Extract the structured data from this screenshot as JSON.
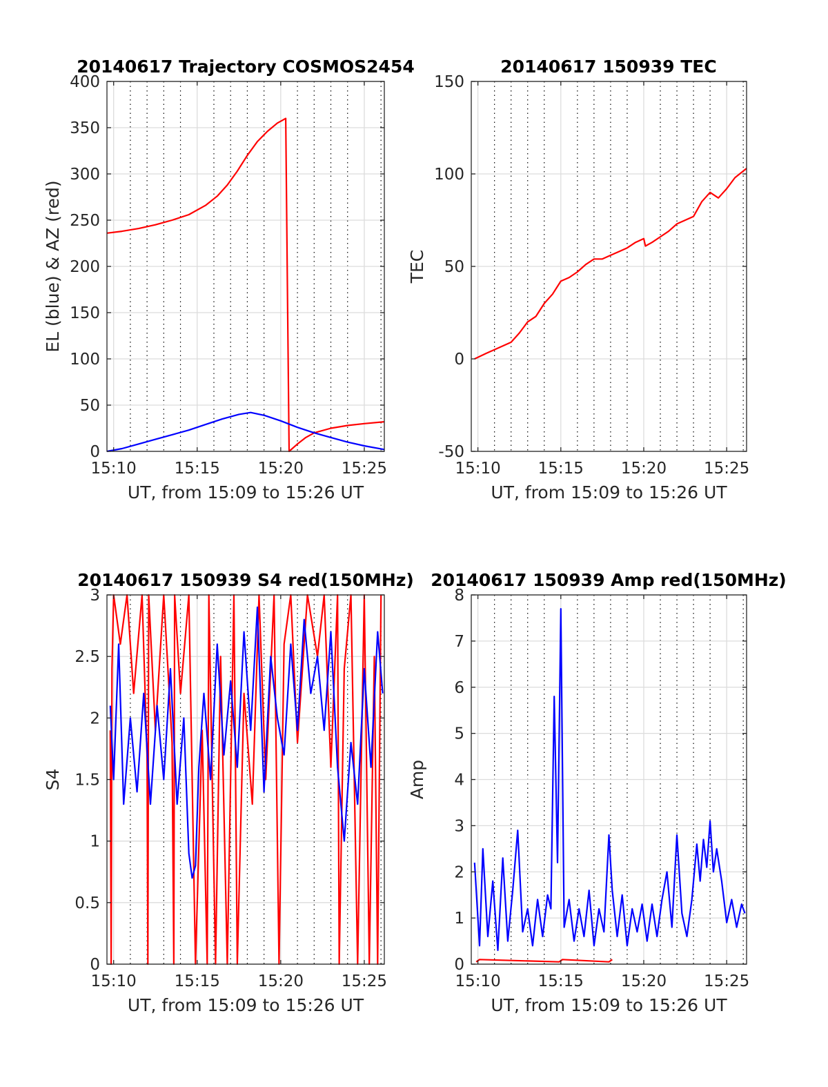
{
  "chart_data": [
    {
      "type": "line",
      "title": "20140617 Trajectory COSMOS2454",
      "xlabel": "UT, from 15:09 to 15:26 UT",
      "ylabel": "EL (blue) & AZ (red)",
      "xlim": [
        9.6,
        26.2
      ],
      "ylim": [
        0,
        400
      ],
      "xticks": [
        10,
        15,
        20,
        25
      ],
      "xtick_labels": [
        "15:10",
        "15:15",
        "15:20",
        "15:25"
      ],
      "yticks": [
        0,
        50,
        100,
        150,
        200,
        250,
        300,
        350,
        400
      ],
      "ytick_labels": [
        "0",
        "50",
        "100",
        "150",
        "200",
        "250",
        "300",
        "350",
        "400"
      ],
      "grid": true,
      "minor_grid_x": true,
      "series": [
        {
          "color": "#ff0000",
          "x": [
            9.6,
            10.5,
            11.5,
            12.5,
            13.5,
            14.5,
            15.5,
            16.2,
            16.8,
            17.4,
            18.0,
            18.6,
            19.2,
            19.8,
            20.1,
            20.3,
            20.4,
            20.5,
            21.0,
            21.5,
            22.0,
            23.0,
            24.0,
            25.0,
            26.2
          ],
          "y": [
            236,
            238,
            241,
            245,
            250,
            256,
            266,
            276,
            288,
            303,
            320,
            335,
            346,
            355,
            358,
            360,
            180,
            0,
            8,
            15,
            20,
            25,
            28,
            30,
            32
          ]
        },
        {
          "color": "#0000ff",
          "x": [
            9.6,
            10.5,
            11.5,
            12.5,
            13.5,
            14.5,
            15.5,
            16.5,
            17.5,
            18.2,
            19.0,
            20.0,
            21.0,
            22.0,
            23.0,
            24.0,
            25.0,
            26.2
          ],
          "y": [
            0,
            3,
            8,
            13,
            18,
            23,
            29,
            35,
            40,
            42,
            39,
            33,
            26,
            20,
            15,
            10,
            6,
            2
          ]
        }
      ]
    },
    {
      "type": "line",
      "title": "20140617 150939 TEC",
      "xlabel": "UT, from 15:09 to 15:26 UT",
      "ylabel": "TEC",
      "xlim": [
        9.6,
        26.2
      ],
      "ylim": [
        -50,
        150
      ],
      "xticks": [
        10,
        15,
        20,
        25
      ],
      "xtick_labels": [
        "15:10",
        "15:15",
        "15:20",
        "15:25"
      ],
      "yticks": [
        -50,
        0,
        50,
        100,
        150
      ],
      "ytick_labels": [
        "-50",
        "0",
        "50",
        "100",
        "150"
      ],
      "grid": true,
      "minor_grid_x": true,
      "series": [
        {
          "color": "#ff0000",
          "x": [
            9.8,
            10.5,
            11.0,
            11.5,
            12.0,
            12.5,
            13.0,
            13.5,
            14.0,
            14.5,
            15.0,
            15.5,
            16.0,
            16.5,
            17.0,
            17.5,
            18.0,
            18.5,
            19.0,
            19.5,
            20.0,
            20.1,
            20.5,
            21.0,
            21.5,
            22.0,
            22.5,
            23.0,
            23.5,
            24.0,
            24.5,
            25.0,
            25.5,
            26.2
          ],
          "y": [
            0,
            3,
            5,
            7,
            9,
            14,
            20,
            23,
            30,
            35,
            42,
            44,
            47,
            51,
            54,
            54,
            56,
            58,
            60,
            63,
            65,
            61,
            63,
            66,
            69,
            73,
            75,
            77,
            85,
            90,
            87,
            92,
            98,
            103
          ]
        }
      ]
    },
    {
      "type": "line",
      "title": "20140617 150939 S4 red(150MHz)",
      "xlabel": "UT, from 15:09 to 15:26 UT",
      "ylabel": "S4",
      "xlim": [
        9.6,
        26.2
      ],
      "ylim": [
        0,
        3
      ],
      "xticks": [
        10,
        15,
        20,
        25
      ],
      "xtick_labels": [
        "15:10",
        "15:15",
        "15:20",
        "15:25"
      ],
      "yticks": [
        0,
        0.5,
        1,
        1.5,
        2,
        2.5,
        3
      ],
      "ytick_labels": [
        "0",
        "0.5",
        "1",
        "1.5",
        "2",
        "2.5",
        "3"
      ],
      "grid": true,
      "minor_grid_x": true,
      "series": [
        {
          "color": "#ff0000",
          "x": [
            9.8,
            9.85,
            9.9,
            10.0,
            10.4,
            10.8,
            11.2,
            11.7,
            12.0,
            12.05,
            12.1,
            12.5,
            13.0,
            13.5,
            13.6,
            13.65,
            14.0,
            14.5,
            14.9,
            15.3,
            15.6,
            15.7,
            16.1,
            16.4,
            16.8,
            17.2,
            17.4,
            17.8,
            18.3,
            18.7,
            19.1,
            19.6,
            19.9,
            20.2,
            20.6,
            21.0,
            21.6,
            22.2,
            22.6,
            23.0,
            23.4,
            23.5,
            23.8,
            24.2,
            24.6,
            25.0,
            25.3,
            25.6,
            25.8,
            26.0
          ],
          "y": [
            1.9,
            0,
            2.4,
            3,
            2.6,
            3,
            2.2,
            3,
            1.7,
            0,
            3,
            1.9,
            3,
            1.8,
            0,
            3,
            2.2,
            3,
            0,
            1.9,
            0,
            3,
            0,
            2.5,
            0,
            3,
            0,
            2.2,
            1.3,
            3,
            1.5,
            3,
            0,
            2.6,
            3,
            1.8,
            3,
            2.5,
            3,
            1.6,
            3,
            0,
            2.4,
            3,
            0,
            3,
            0,
            2.5,
            0,
            3
          ]
        },
        {
          "color": "#0000ff",
          "x": [
            9.8,
            10.0,
            10.3,
            10.6,
            11.0,
            11.4,
            11.8,
            12.2,
            12.6,
            13.0,
            13.4,
            13.8,
            14.2,
            14.5,
            14.7,
            14.9,
            15.1,
            15.4,
            15.8,
            16.2,
            16.6,
            17.0,
            17.4,
            17.8,
            18.2,
            18.6,
            19.0,
            19.4,
            19.8,
            20.2,
            20.6,
            21.0,
            21.4,
            21.8,
            22.2,
            22.6,
            23.0,
            23.4,
            23.8,
            24.2,
            24.6,
            25.0,
            25.4,
            25.8,
            26.1
          ],
          "y": [
            2.1,
            1.5,
            2.6,
            1.3,
            2.0,
            1.4,
            2.2,
            1.3,
            2.1,
            1.5,
            2.4,
            1.3,
            2.0,
            0.9,
            0.7,
            0.8,
            1.6,
            2.2,
            1.5,
            2.6,
            1.7,
            2.3,
            1.6,
            2.7,
            1.9,
            2.9,
            1.4,
            2.5,
            2.0,
            1.7,
            2.6,
            1.9,
            2.8,
            2.2,
            2.5,
            1.9,
            2.7,
            1.6,
            1.0,
            1.8,
            1.3,
            2.4,
            1.6,
            2.7,
            2.2
          ]
        }
      ]
    },
    {
      "type": "line",
      "title": "20140617 150939 Amp red(150MHz)",
      "xlabel": "UT, from 15:09 to 15:26 UT",
      "ylabel": "Amp",
      "xlim": [
        9.6,
        26.2
      ],
      "ylim": [
        0,
        8
      ],
      "xticks": [
        10,
        15,
        20,
        25
      ],
      "xtick_labels": [
        "15:10",
        "15:15",
        "15:20",
        "15:25"
      ],
      "yticks": [
        0,
        1,
        2,
        3,
        4,
        5,
        6,
        7,
        8
      ],
      "ytick_labels": [
        "0",
        "1",
        "2",
        "3",
        "4",
        "5",
        "6",
        "7",
        "8"
      ],
      "grid": true,
      "minor_grid_x": true,
      "series": [
        {
          "color": "#ff0000",
          "x": [
            9.9,
            10.1,
            14.9,
            15.1,
            17.9,
            18.1
          ],
          "y": [
            0.05,
            0.1,
            0.05,
            0.1,
            0.05,
            0.1
          ]
        },
        {
          "color": "#0000ff",
          "x": [
            9.8,
            10.1,
            10.3,
            10.6,
            10.9,
            11.2,
            11.5,
            11.8,
            12.1,
            12.4,
            12.7,
            13.0,
            13.3,
            13.6,
            13.9,
            14.2,
            14.4,
            14.6,
            14.8,
            15.0,
            15.2,
            15.5,
            15.8,
            16.1,
            16.4,
            16.7,
            17.0,
            17.3,
            17.6,
            17.9,
            18.1,
            18.4,
            18.7,
            19.0,
            19.3,
            19.6,
            19.9,
            20.2,
            20.5,
            20.8,
            21.1,
            21.4,
            21.7,
            22.0,
            22.3,
            22.6,
            22.9,
            23.2,
            23.4,
            23.6,
            23.8,
            24.0,
            24.2,
            24.4,
            24.7,
            25.0,
            25.3,
            25.6,
            25.9,
            26.1
          ],
          "y": [
            2.2,
            0.4,
            2.5,
            0.6,
            1.8,
            0.3,
            2.3,
            0.5,
            1.6,
            2.9,
            0.7,
            1.2,
            0.4,
            1.4,
            0.6,
            1.5,
            1.2,
            5.8,
            2.2,
            7.7,
            0.8,
            1.4,
            0.5,
            1.2,
            0.6,
            1.6,
            0.4,
            1.2,
            0.7,
            2.8,
            1.6,
            0.6,
            1.5,
            0.4,
            1.2,
            0.7,
            1.3,
            0.5,
            1.3,
            0.6,
            1.4,
            2.0,
            0.8,
            2.8,
            1.1,
            0.6,
            1.4,
            2.6,
            1.8,
            2.7,
            2.1,
            3.1,
            2.0,
            2.5,
            1.8,
            0.9,
            1.4,
            0.8,
            1.3,
            1.1
          ]
        }
      ]
    }
  ]
}
